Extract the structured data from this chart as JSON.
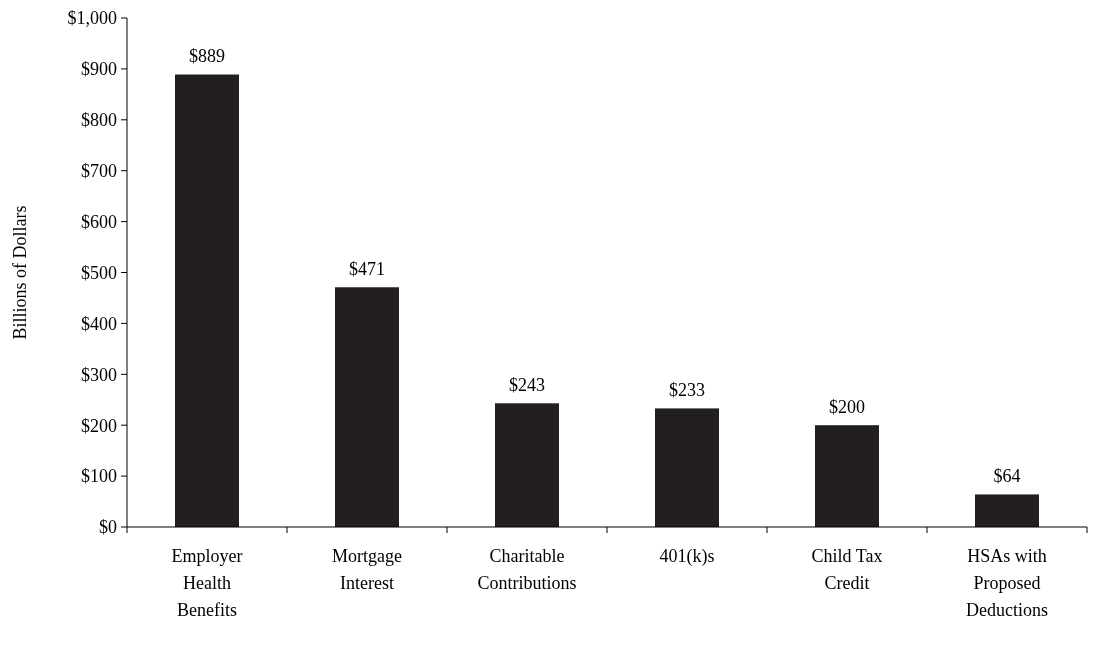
{
  "chart_data": {
    "type": "bar",
    "ylabel": "Billions of Dollars",
    "categories": [
      "Employer Health Benefits",
      "Mortgage Interest",
      "Charitable Contributions",
      "401(k)s",
      "Child Tax Credit",
      "HSAs with Proposed Deductions"
    ],
    "values": [
      889,
      471,
      243,
      233,
      200,
      64
    ],
    "value_labels": [
      "$889",
      "$471",
      "$243",
      "$233",
      "$200",
      "$64"
    ],
    "color": "#231f20",
    "ylim": [
      0,
      1000
    ],
    "yticks": [
      {
        "value": 0,
        "label": "$0"
      },
      {
        "value": 100,
        "label": "$100"
      },
      {
        "value": 200,
        "label": "$200"
      },
      {
        "value": 300,
        "label": "$300"
      },
      {
        "value": 400,
        "label": "$400"
      },
      {
        "value": 500,
        "label": "$500"
      },
      {
        "value": 600,
        "label": "$600"
      },
      {
        "value": 700,
        "label": "$700"
      },
      {
        "value": 800,
        "label": "$800"
      },
      {
        "value": 900,
        "label": "$900"
      },
      {
        "value": 1000,
        "label": "$1,000"
      }
    ],
    "grid": false
  }
}
